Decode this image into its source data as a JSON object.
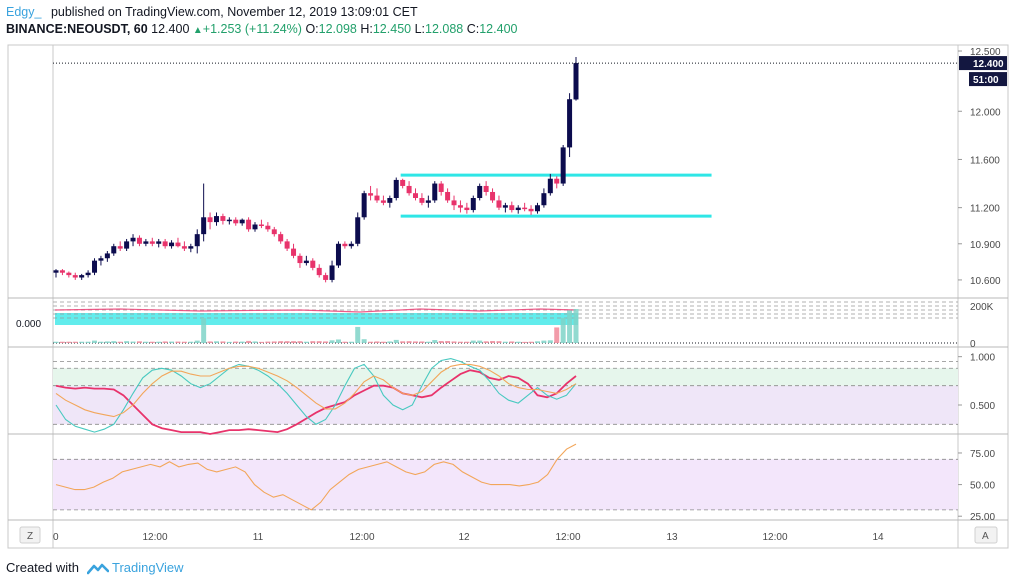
{
  "header": {
    "author": "Edgy_",
    "published_text": "published on TradingView.com, November 12, 2019 13:09:01 CET",
    "symbol": "BINANCE:NEOUSDT, 60",
    "last": "12.400",
    "change": "+1.253 (+11.24%)",
    "o_label": "O:",
    "o": "12.098",
    "h_label": "H:",
    "h": "12.450",
    "l_label": "L:",
    "l": "12.088",
    "c_label": "C:",
    "c": "12.400"
  },
  "footer": {
    "created_with": "Created with",
    "brand": "TradingView"
  },
  "colors": {
    "up": "#0c0c4e",
    "down": "#e8336b",
    "channel": "#2ee6e6",
    "accent": "#3aa3de"
  },
  "chart_data": [
    {
      "type": "candlestick",
      "ylim": [
        10.45,
        12.55
      ],
      "y_ticks": [
        "12.500",
        "12.000",
        "11.600",
        "11.200",
        "10.900",
        "10.600"
      ],
      "y_tick_values": [
        12.5,
        12.0,
        11.6,
        11.2,
        10.9,
        10.6
      ],
      "x_ticks": [
        "0",
        "12:00",
        "11",
        "12:00",
        "12",
        "12:00",
        "13",
        "12:00",
        "14"
      ],
      "price_label": "12.400",
      "countdown_label": "51:00",
      "channel": {
        "upper": 11.47,
        "lower": 11.13,
        "from_bar": 54,
        "to_bar": 99
      },
      "candles": [
        {
          "o": 10.66,
          "h": 10.69,
          "l": 10.62,
          "c": 10.68
        },
        {
          "o": 10.68,
          "h": 10.69,
          "l": 10.64,
          "c": 10.66
        },
        {
          "o": 10.66,
          "h": 10.67,
          "l": 10.62,
          "c": 10.64
        },
        {
          "o": 10.64,
          "h": 10.66,
          "l": 10.6,
          "c": 10.62
        },
        {
          "o": 10.62,
          "h": 10.65,
          "l": 10.6,
          "c": 10.64
        },
        {
          "o": 10.64,
          "h": 10.68,
          "l": 10.62,
          "c": 10.66
        },
        {
          "o": 10.66,
          "h": 10.78,
          "l": 10.64,
          "c": 10.76
        },
        {
          "o": 10.76,
          "h": 10.8,
          "l": 10.72,
          "c": 10.78
        },
        {
          "o": 10.78,
          "h": 10.84,
          "l": 10.75,
          "c": 10.82
        },
        {
          "o": 10.82,
          "h": 10.9,
          "l": 10.8,
          "c": 10.88
        },
        {
          "o": 10.88,
          "h": 10.92,
          "l": 10.84,
          "c": 10.86
        },
        {
          "o": 10.86,
          "h": 10.94,
          "l": 10.84,
          "c": 10.92
        },
        {
          "o": 10.92,
          "h": 10.98,
          "l": 10.88,
          "c": 10.95
        },
        {
          "o": 10.95,
          "h": 10.97,
          "l": 10.88,
          "c": 10.9
        },
        {
          "o": 10.9,
          "h": 10.94,
          "l": 10.88,
          "c": 10.92
        },
        {
          "o": 10.92,
          "h": 10.95,
          "l": 10.88,
          "c": 10.9
        },
        {
          "o": 10.9,
          "h": 10.94,
          "l": 10.87,
          "c": 10.92
        },
        {
          "o": 10.92,
          "h": 10.94,
          "l": 10.86,
          "c": 10.88
        },
        {
          "o": 10.88,
          "h": 10.93,
          "l": 10.86,
          "c": 10.91
        },
        {
          "o": 10.91,
          "h": 10.95,
          "l": 10.87,
          "c": 10.88
        },
        {
          "o": 10.88,
          "h": 10.92,
          "l": 10.84,
          "c": 10.86
        },
        {
          "o": 10.86,
          "h": 10.9,
          "l": 10.83,
          "c": 10.88
        },
        {
          "o": 10.88,
          "h": 11.02,
          "l": 10.82,
          "c": 10.98
        },
        {
          "o": 10.98,
          "h": 11.4,
          "l": 10.92,
          "c": 11.12
        },
        {
          "o": 11.12,
          "h": 11.16,
          "l": 11.02,
          "c": 11.08
        },
        {
          "o": 11.08,
          "h": 11.16,
          "l": 11.05,
          "c": 11.13
        },
        {
          "o": 11.13,
          "h": 11.15,
          "l": 11.06,
          "c": 11.09
        },
        {
          "o": 11.09,
          "h": 11.12,
          "l": 11.06,
          "c": 11.1
        },
        {
          "o": 11.1,
          "h": 11.12,
          "l": 11.05,
          "c": 11.07
        },
        {
          "o": 11.07,
          "h": 11.11,
          "l": 11.05,
          "c": 11.1
        },
        {
          "o": 11.1,
          "h": 11.12,
          "l": 11.0,
          "c": 11.02
        },
        {
          "o": 11.02,
          "h": 11.08,
          "l": 11.0,
          "c": 11.06
        },
        {
          "o": 11.06,
          "h": 11.1,
          "l": 11.03,
          "c": 11.05
        },
        {
          "o": 11.05,
          "h": 11.08,
          "l": 11.0,
          "c": 11.02
        },
        {
          "o": 11.02,
          "h": 11.04,
          "l": 10.96,
          "c": 10.98
        },
        {
          "o": 10.98,
          "h": 11.0,
          "l": 10.9,
          "c": 10.92
        },
        {
          "o": 10.92,
          "h": 10.94,
          "l": 10.84,
          "c": 10.86
        },
        {
          "o": 10.86,
          "h": 10.9,
          "l": 10.78,
          "c": 10.8
        },
        {
          "o": 10.8,
          "h": 10.82,
          "l": 10.7,
          "c": 10.74
        },
        {
          "o": 10.74,
          "h": 10.8,
          "l": 10.72,
          "c": 10.76
        },
        {
          "o": 10.76,
          "h": 10.78,
          "l": 10.68,
          "c": 10.7
        },
        {
          "o": 10.7,
          "h": 10.73,
          "l": 10.62,
          "c": 10.64
        },
        {
          "o": 10.64,
          "h": 10.66,
          "l": 10.58,
          "c": 10.6
        },
        {
          "o": 10.6,
          "h": 10.76,
          "l": 10.58,
          "c": 10.72
        },
        {
          "o": 10.72,
          "h": 10.92,
          "l": 10.7,
          "c": 10.9
        },
        {
          "o": 10.9,
          "h": 10.92,
          "l": 10.86,
          "c": 10.88
        },
        {
          "o": 10.88,
          "h": 10.92,
          "l": 10.86,
          "c": 10.9
        },
        {
          "o": 10.9,
          "h": 11.16,
          "l": 10.88,
          "c": 11.12
        },
        {
          "o": 11.12,
          "h": 11.34,
          "l": 11.1,
          "c": 11.32
        },
        {
          "o": 11.32,
          "h": 11.38,
          "l": 11.26,
          "c": 11.3
        },
        {
          "o": 11.3,
          "h": 11.36,
          "l": 11.24,
          "c": 11.26
        },
        {
          "o": 11.26,
          "h": 11.3,
          "l": 11.22,
          "c": 11.24
        },
        {
          "o": 11.24,
          "h": 11.3,
          "l": 11.2,
          "c": 11.28
        },
        {
          "o": 11.28,
          "h": 11.45,
          "l": 11.26,
          "c": 11.43
        },
        {
          "o": 11.43,
          "h": 11.44,
          "l": 11.36,
          "c": 11.38
        },
        {
          "o": 11.38,
          "h": 11.42,
          "l": 11.3,
          "c": 11.32
        },
        {
          "o": 11.32,
          "h": 11.36,
          "l": 11.26,
          "c": 11.28
        },
        {
          "o": 11.28,
          "h": 11.32,
          "l": 11.22,
          "c": 11.24
        },
        {
          "o": 11.24,
          "h": 11.3,
          "l": 11.2,
          "c": 11.26
        },
        {
          "o": 11.26,
          "h": 11.42,
          "l": 11.24,
          "c": 11.4
        },
        {
          "o": 11.4,
          "h": 11.42,
          "l": 11.3,
          "c": 11.33
        },
        {
          "o": 11.33,
          "h": 11.36,
          "l": 11.24,
          "c": 11.26
        },
        {
          "o": 11.26,
          "h": 11.3,
          "l": 11.18,
          "c": 11.22
        },
        {
          "o": 11.22,
          "h": 11.26,
          "l": 11.16,
          "c": 11.2
        },
        {
          "o": 11.2,
          "h": 11.24,
          "l": 11.15,
          "c": 11.18
        },
        {
          "o": 11.18,
          "h": 11.3,
          "l": 11.16,
          "c": 11.28
        },
        {
          "o": 11.28,
          "h": 11.4,
          "l": 11.26,
          "c": 11.38
        },
        {
          "o": 11.38,
          "h": 11.42,
          "l": 11.3,
          "c": 11.33
        },
        {
          "o": 11.33,
          "h": 11.36,
          "l": 11.24,
          "c": 11.26
        },
        {
          "o": 11.26,
          "h": 11.3,
          "l": 11.18,
          "c": 11.2
        },
        {
          "o": 11.2,
          "h": 11.24,
          "l": 11.16,
          "c": 11.22
        },
        {
          "o": 11.22,
          "h": 11.25,
          "l": 11.16,
          "c": 11.18
        },
        {
          "o": 11.18,
          "h": 11.22,
          "l": 11.15,
          "c": 11.2
        },
        {
          "o": 11.2,
          "h": 11.24,
          "l": 11.17,
          "c": 11.19
        },
        {
          "o": 11.19,
          "h": 11.22,
          "l": 11.14,
          "c": 11.17
        },
        {
          "o": 11.17,
          "h": 11.24,
          "l": 11.15,
          "c": 11.22
        },
        {
          "o": 11.22,
          "h": 11.36,
          "l": 11.2,
          "c": 11.32
        },
        {
          "o": 11.32,
          "h": 11.48,
          "l": 11.3,
          "c": 11.44
        },
        {
          "o": 11.44,
          "h": 11.46,
          "l": 11.36,
          "c": 11.4
        },
        {
          "o": 11.4,
          "h": 11.72,
          "l": 11.38,
          "c": 11.7
        },
        {
          "o": 11.7,
          "h": 12.15,
          "l": 11.62,
          "c": 12.1
        },
        {
          "o": 12.098,
          "h": 12.45,
          "l": 12.088,
          "c": 12.4
        }
      ]
    },
    {
      "type": "volume",
      "y_ticks": [
        "200K",
        "0"
      ],
      "y_tick_values": [
        200000,
        0
      ],
      "left_label": "0.000"
    },
    {
      "type": "line",
      "name": "",
      "y_ticks": [
        "1.000",
        "0.500"
      ],
      "y_tick_values": [
        1.0,
        0.5
      ],
      "ylim": [
        0.2,
        1.1
      ],
      "bands": [
        0.95,
        0.88,
        0.7,
        0.3
      ],
      "series": [
        {
          "color": "#e8336b",
          "values": [
            0.7,
            0.68,
            0.67,
            0.68,
            0.67,
            0.67,
            0.66,
            0.6,
            0.5,
            0.4,
            0.3,
            0.26,
            0.24,
            0.22,
            0.22,
            0.22,
            0.2,
            0.22,
            0.24,
            0.24,
            0.25,
            0.24,
            0.23,
            0.22,
            0.25,
            0.3,
            0.36,
            0.42,
            0.47,
            0.5,
            0.53,
            0.6,
            0.65,
            0.7,
            0.7,
            0.68,
            0.62,
            0.6,
            0.58,
            0.6,
            0.68,
            0.75,
            0.82,
            0.86,
            0.84,
            0.78,
            0.76,
            0.8,
            0.78,
            0.72,
            0.6,
            0.58,
            0.62,
            0.72,
            0.8
          ]
        },
        {
          "color": "#48c9c0",
          "values": [
            0.5,
            0.35,
            0.28,
            0.25,
            0.22,
            0.25,
            0.3,
            0.45,
            0.62,
            0.78,
            0.86,
            0.88,
            0.86,
            0.8,
            0.72,
            0.68,
            0.72,
            0.8,
            0.88,
            0.92,
            0.9,
            0.86,
            0.8,
            0.72,
            0.62,
            0.5,
            0.38,
            0.3,
            0.35,
            0.5,
            0.7,
            0.88,
            0.92,
            0.8,
            0.6,
            0.5,
            0.45,
            0.5,
            0.7,
            0.88,
            0.96,
            0.98,
            0.95,
            0.9,
            0.86,
            0.75,
            0.62,
            0.55,
            0.52,
            0.6,
            0.68,
            0.6,
            0.56,
            0.6,
            0.72
          ]
        },
        {
          "color": "#f2a65a",
          "values": [
            0.62,
            0.55,
            0.5,
            0.45,
            0.42,
            0.4,
            0.38,
            0.42,
            0.5,
            0.62,
            0.72,
            0.8,
            0.85,
            0.85,
            0.82,
            0.8,
            0.8,
            0.84,
            0.88,
            0.9,
            0.9,
            0.88,
            0.84,
            0.8,
            0.75,
            0.68,
            0.6,
            0.52,
            0.46,
            0.46,
            0.52,
            0.62,
            0.74,
            0.8,
            0.76,
            0.68,
            0.62,
            0.6,
            0.64,
            0.74,
            0.84,
            0.9,
            0.92,
            0.92,
            0.9,
            0.86,
            0.8,
            0.72,
            0.68,
            0.66,
            0.66,
            0.64,
            0.62,
            0.66,
            0.72
          ]
        }
      ]
    },
    {
      "type": "line",
      "name": "",
      "y_ticks": [
        "75.00",
        "50.00",
        "25.00"
      ],
      "y_tick_values": [
        75,
        50,
        25
      ],
      "ylim": [
        22,
        90
      ],
      "bands": [
        70,
        30
      ],
      "series": [
        {
          "color": "#f2a65a",
          "values": [
            50,
            48,
            46,
            46,
            48,
            52,
            55,
            60,
            62,
            64,
            66,
            64,
            68,
            64,
            66,
            67,
            62,
            60,
            62,
            64,
            60,
            50,
            44,
            40,
            42,
            38,
            34,
            30,
            36,
            46,
            52,
            58,
            62,
            64,
            66,
            68,
            64,
            60,
            58,
            60,
            66,
            68,
            66,
            60,
            56,
            52,
            50,
            50,
            50,
            49,
            50,
            52,
            58,
            70,
            78,
            82
          ]
        }
      ]
    }
  ]
}
